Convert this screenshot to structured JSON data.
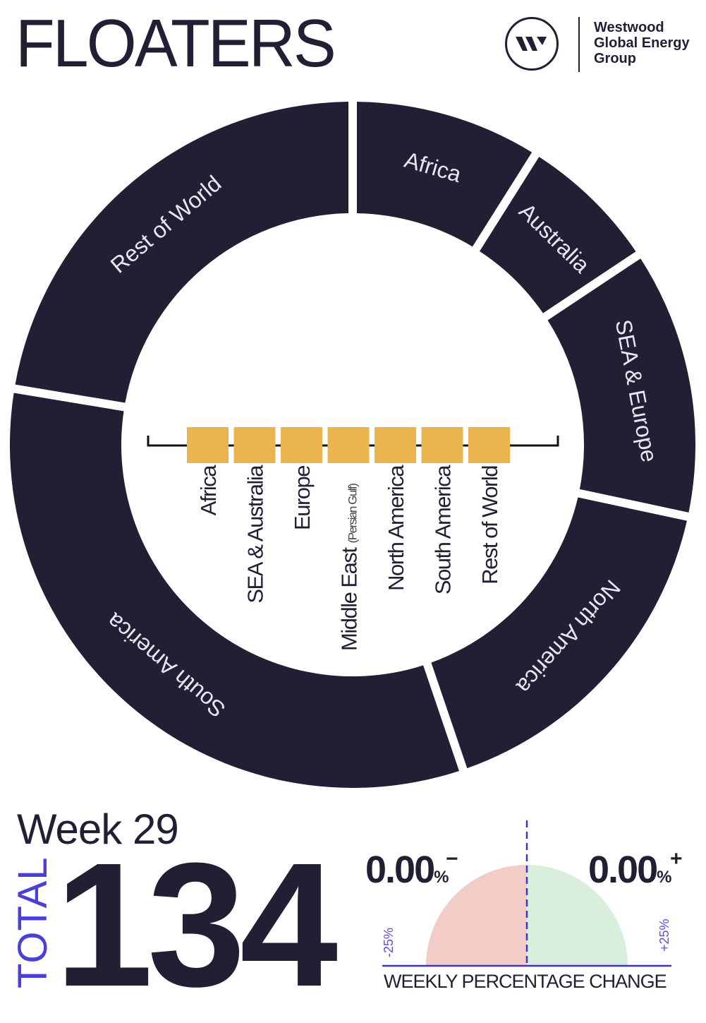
{
  "header": {
    "title": "FLOATERS",
    "logo": {
      "lines": [
        "Westwood",
        "Global Energy",
        "Group"
      ],
      "icon": "w-monogram-icon"
    }
  },
  "chart_data": [
    {
      "type": "pie",
      "variant": "donut",
      "categories": [
        "Africa",
        "Australia",
        "SEA & Europe",
        "North America",
        "South America",
        "Rest of World"
      ],
      "values": [
        12,
        9,
        17,
        22,
        44,
        30
      ],
      "segment_color": "#221f35",
      "label_color": "#e8e6f0"
    },
    {
      "type": "table",
      "title": "",
      "categories": [
        "Africa",
        "SEA & Australia",
        "Europe",
        "Middle East",
        "North America",
        "South America",
        "Rest of World"
      ],
      "category_notes": {
        "Middle East": "(Persian Gulf)"
      },
      "marker_color": "#ebb44f"
    },
    {
      "type": "pie",
      "variant": "half-gauge",
      "title": "WEEKLY PERCENTAGE CHANGE",
      "decrease": {
        "value": "0.00",
        "sign": "−",
        "unit": "%",
        "color": "#f2cdc8"
      },
      "increase": {
        "value": "0.00",
        "sign": "+",
        "unit": "%",
        "color": "#d9efdc"
      },
      "range_min_label": "-25%",
      "range_max_label": "+25%",
      "axis_color": "#3d30d6"
    }
  ],
  "summary": {
    "week": "Week 29",
    "total_label": "TOTAL",
    "total_value": "134"
  }
}
